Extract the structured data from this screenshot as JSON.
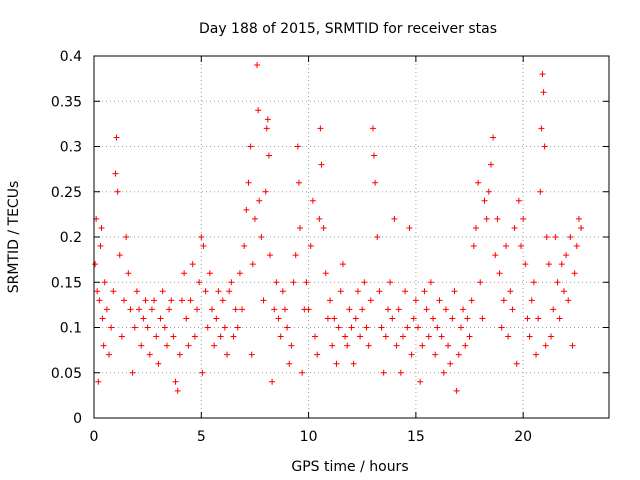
{
  "chart_data": {
    "type": "scatter",
    "title": "Day 188 of 2015, SRMTID for receiver stas",
    "xlabel": "GPS time / hours",
    "ylabel": "SRMTID / TECUs",
    "xlim": [
      0,
      24
    ],
    "ylim": [
      0,
      0.4
    ],
    "xticks": [
      0,
      5,
      10,
      15,
      20
    ],
    "xtick_labels": [
      "0",
      "5",
      "10",
      "15",
      "20"
    ],
    "yticks": [
      0,
      0.05,
      0.1,
      0.15,
      0.2,
      0.25,
      0.3,
      0.35,
      0.4
    ],
    "ytick_labels": [
      "0",
      "0.05",
      "0.1",
      "0.15",
      "0.2",
      "0.25",
      "0.3",
      "0.35",
      "0.4"
    ],
    "grid": true,
    "marker": "plus",
    "color": "#ff0000",
    "series": [
      {
        "name": "SRMTID",
        "points": [
          [
            0.05,
            0.17
          ],
          [
            0.1,
            0.22
          ],
          [
            0.15,
            0.14
          ],
          [
            0.2,
            0.04
          ],
          [
            0.25,
            0.13
          ],
          [
            0.3,
            0.19
          ],
          [
            0.35,
            0.21
          ],
          [
            0.4,
            0.11
          ],
          [
            0.45,
            0.08
          ],
          [
            0.5,
            0.15
          ],
          [
            0.6,
            0.12
          ],
          [
            0.7,
            0.07
          ],
          [
            0.8,
            0.1
          ],
          [
            0.9,
            0.14
          ],
          [
            1.0,
            0.27
          ],
          [
            1.05,
            0.31
          ],
          [
            1.1,
            0.25
          ],
          [
            1.2,
            0.18
          ],
          [
            1.3,
            0.09
          ],
          [
            1.4,
            0.13
          ],
          [
            1.5,
            0.2
          ],
          [
            1.6,
            0.16
          ],
          [
            1.7,
            0.12
          ],
          [
            1.8,
            0.05
          ],
          [
            1.9,
            0.1
          ],
          [
            2.0,
            0.14
          ],
          [
            2.1,
            0.12
          ],
          [
            2.2,
            0.08
          ],
          [
            2.3,
            0.11
          ],
          [
            2.4,
            0.13
          ],
          [
            2.5,
            0.1
          ],
          [
            2.6,
            0.07
          ],
          [
            2.7,
            0.12
          ],
          [
            2.8,
            0.13
          ],
          [
            2.9,
            0.09
          ],
          [
            3.0,
            0.06
          ],
          [
            3.1,
            0.11
          ],
          [
            3.2,
            0.14
          ],
          [
            3.3,
            0.1
          ],
          [
            3.4,
            0.08
          ],
          [
            3.5,
            0.12
          ],
          [
            3.6,
            0.13
          ],
          [
            3.7,
            0.09
          ],
          [
            3.8,
            0.04
          ],
          [
            3.9,
            0.03
          ],
          [
            4.0,
            0.07
          ],
          [
            4.1,
            0.13
          ],
          [
            4.2,
            0.16
          ],
          [
            4.3,
            0.11
          ],
          [
            4.4,
            0.08
          ],
          [
            4.5,
            0.13
          ],
          [
            4.6,
            0.17
          ],
          [
            4.7,
            0.09
          ],
          [
            4.8,
            0.12
          ],
          [
            4.9,
            0.15
          ],
          [
            5.0,
            0.2
          ],
          [
            5.05,
            0.05
          ],
          [
            5.1,
            0.19
          ],
          [
            5.2,
            0.14
          ],
          [
            5.3,
            0.1
          ],
          [
            5.4,
            0.16
          ],
          [
            5.5,
            0.12
          ],
          [
            5.6,
            0.08
          ],
          [
            5.7,
            0.11
          ],
          [
            5.8,
            0.14
          ],
          [
            5.9,
            0.09
          ],
          [
            6.0,
            0.13
          ],
          [
            6.1,
            0.1
          ],
          [
            6.2,
            0.07
          ],
          [
            6.3,
            0.14
          ],
          [
            6.4,
            0.15
          ],
          [
            6.5,
            0.09
          ],
          [
            6.6,
            0.12
          ],
          [
            6.7,
            0.1
          ],
          [
            6.8,
            0.16
          ],
          [
            6.9,
            0.12
          ],
          [
            7.0,
            0.19
          ],
          [
            7.1,
            0.23
          ],
          [
            7.2,
            0.26
          ],
          [
            7.3,
            0.3
          ],
          [
            7.35,
            0.07
          ],
          [
            7.4,
            0.17
          ],
          [
            7.5,
            0.22
          ],
          [
            7.6,
            0.39
          ],
          [
            7.65,
            0.34
          ],
          [
            7.7,
            0.24
          ],
          [
            7.8,
            0.2
          ],
          [
            7.9,
            0.13
          ],
          [
            8.0,
            0.25
          ],
          [
            8.05,
            0.32
          ],
          [
            8.1,
            0.33
          ],
          [
            8.15,
            0.29
          ],
          [
            8.2,
            0.18
          ],
          [
            8.3,
            0.04
          ],
          [
            8.4,
            0.12
          ],
          [
            8.5,
            0.15
          ],
          [
            8.6,
            0.11
          ],
          [
            8.7,
            0.09
          ],
          [
            8.8,
            0.14
          ],
          [
            8.9,
            0.12
          ],
          [
            9.0,
            0.1
          ],
          [
            9.1,
            0.06
          ],
          [
            9.2,
            0.08
          ],
          [
            9.3,
            0.15
          ],
          [
            9.4,
            0.18
          ],
          [
            9.5,
            0.3
          ],
          [
            9.55,
            0.26
          ],
          [
            9.6,
            0.21
          ],
          [
            9.7,
            0.05
          ],
          [
            9.8,
            0.12
          ],
          [
            9.9,
            0.15
          ],
          [
            10.0,
            0.12
          ],
          [
            10.1,
            0.19
          ],
          [
            10.2,
            0.24
          ],
          [
            10.3,
            0.09
          ],
          [
            10.4,
            0.07
          ],
          [
            10.5,
            0.22
          ],
          [
            10.55,
            0.32
          ],
          [
            10.6,
            0.28
          ],
          [
            10.7,
            0.21
          ],
          [
            10.8,
            0.16
          ],
          [
            10.9,
            0.11
          ],
          [
            11.0,
            0.13
          ],
          [
            11.1,
            0.08
          ],
          [
            11.2,
            0.11
          ],
          [
            11.3,
            0.06
          ],
          [
            11.4,
            0.1
          ],
          [
            11.5,
            0.14
          ],
          [
            11.6,
            0.17
          ],
          [
            11.7,
            0.09
          ],
          [
            11.8,
            0.08
          ],
          [
            11.9,
            0.12
          ],
          [
            12.0,
            0.1
          ],
          [
            12.1,
            0.06
          ],
          [
            12.2,
            0.11
          ],
          [
            12.3,
            0.14
          ],
          [
            12.4,
            0.09
          ],
          [
            12.5,
            0.12
          ],
          [
            12.6,
            0.15
          ],
          [
            12.7,
            0.1
          ],
          [
            12.8,
            0.08
          ],
          [
            12.9,
            0.13
          ],
          [
            13.0,
            0.32
          ],
          [
            13.05,
            0.29
          ],
          [
            13.1,
            0.26
          ],
          [
            13.2,
            0.2
          ],
          [
            13.3,
            0.14
          ],
          [
            13.4,
            0.1
          ],
          [
            13.5,
            0.05
          ],
          [
            13.6,
            0.09
          ],
          [
            13.7,
            0.12
          ],
          [
            13.8,
            0.15
          ],
          [
            13.9,
            0.11
          ],
          [
            14.0,
            0.22
          ],
          [
            14.1,
            0.08
          ],
          [
            14.2,
            0.12
          ],
          [
            14.3,
            0.05
          ],
          [
            14.4,
            0.09
          ],
          [
            14.5,
            0.14
          ],
          [
            14.6,
            0.1
          ],
          [
            14.7,
            0.21
          ],
          [
            14.8,
            0.07
          ],
          [
            14.9,
            0.11
          ],
          [
            15.0,
            0.13
          ],
          [
            15.1,
            0.1
          ],
          [
            15.2,
            0.04
          ],
          [
            15.3,
            0.08
          ],
          [
            15.4,
            0.14
          ],
          [
            15.5,
            0.12
          ],
          [
            15.6,
            0.09
          ],
          [
            15.7,
            0.15
          ],
          [
            15.8,
            0.11
          ],
          [
            15.9,
            0.07
          ],
          [
            16.0,
            0.1
          ],
          [
            16.1,
            0.13
          ],
          [
            16.2,
            0.09
          ],
          [
            16.3,
            0.05
          ],
          [
            16.4,
            0.12
          ],
          [
            16.5,
            0.08
          ],
          [
            16.6,
            0.06
          ],
          [
            16.7,
            0.11
          ],
          [
            16.8,
            0.14
          ],
          [
            16.9,
            0.03
          ],
          [
            17.0,
            0.07
          ],
          [
            17.1,
            0.1
          ],
          [
            17.2,
            0.12
          ],
          [
            17.3,
            0.08
          ],
          [
            17.4,
            0.11
          ],
          [
            17.5,
            0.09
          ],
          [
            17.6,
            0.13
          ],
          [
            17.7,
            0.19
          ],
          [
            17.8,
            0.21
          ],
          [
            17.9,
            0.26
          ],
          [
            18.0,
            0.15
          ],
          [
            18.1,
            0.11
          ],
          [
            18.2,
            0.24
          ],
          [
            18.3,
            0.22
          ],
          [
            18.4,
            0.25
          ],
          [
            18.5,
            0.28
          ],
          [
            18.6,
            0.31
          ],
          [
            18.7,
            0.18
          ],
          [
            18.8,
            0.22
          ],
          [
            18.9,
            0.16
          ],
          [
            19.0,
            0.1
          ],
          [
            19.1,
            0.13
          ],
          [
            19.2,
            0.19
          ],
          [
            19.3,
            0.09
          ],
          [
            19.4,
            0.14
          ],
          [
            19.5,
            0.12
          ],
          [
            19.6,
            0.21
          ],
          [
            19.7,
            0.06
          ],
          [
            19.8,
            0.24
          ],
          [
            19.9,
            0.19
          ],
          [
            20.0,
            0.22
          ],
          [
            20.1,
            0.17
          ],
          [
            20.2,
            0.11
          ],
          [
            20.3,
            0.09
          ],
          [
            20.4,
            0.13
          ],
          [
            20.5,
            0.15
          ],
          [
            20.6,
            0.07
          ],
          [
            20.7,
            0.11
          ],
          [
            20.8,
            0.25
          ],
          [
            20.85,
            0.32
          ],
          [
            20.9,
            0.38
          ],
          [
            20.95,
            0.36
          ],
          [
            21.0,
            0.3
          ],
          [
            21.05,
            0.08
          ],
          [
            21.1,
            0.2
          ],
          [
            21.2,
            0.17
          ],
          [
            21.3,
            0.09
          ],
          [
            21.4,
            0.12
          ],
          [
            21.5,
            0.2
          ],
          [
            21.6,
            0.15
          ],
          [
            21.7,
            0.11
          ],
          [
            21.8,
            0.17
          ],
          [
            21.9,
            0.14
          ],
          [
            22.0,
            0.18
          ],
          [
            22.1,
            0.13
          ],
          [
            22.2,
            0.2
          ],
          [
            22.3,
            0.08
          ],
          [
            22.4,
            0.16
          ],
          [
            22.5,
            0.19
          ],
          [
            22.6,
            0.22
          ],
          [
            22.7,
            0.21
          ]
        ]
      }
    ]
  }
}
